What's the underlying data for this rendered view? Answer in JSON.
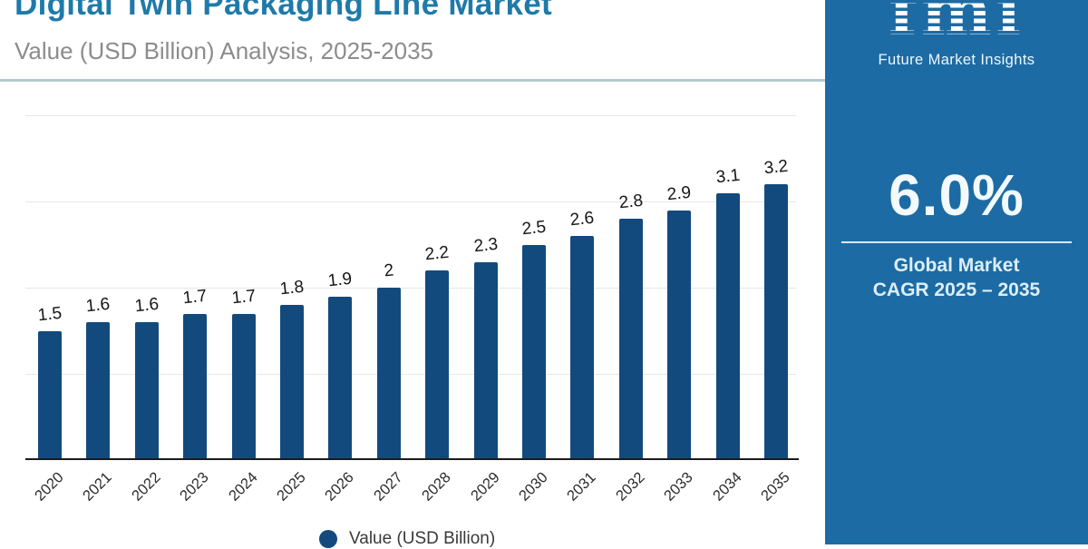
{
  "header": {
    "title": "Digital Twin Packaging Line Market",
    "subtitle": "Value (USD Billion) Analysis, 2025-2035"
  },
  "chart_data": {
    "type": "bar",
    "title": "Digital Twin Packaging Line Market",
    "subtitle": "Value (USD Billion) Analysis, 2025-2035",
    "categories": [
      "2020",
      "2021",
      "2022",
      "2023",
      "2024",
      "2025",
      "2026",
      "2027",
      "2028",
      "2029",
      "2030",
      "2031",
      "2032",
      "2033",
      "2034",
      "2035"
    ],
    "values": [
      1.5,
      1.6,
      1.6,
      1.7,
      1.7,
      1.8,
      1.9,
      2,
      2.2,
      2.3,
      2.5,
      2.6,
      2.8,
      2.9,
      3.1,
      3.2
    ],
    "data_labels": [
      "1.5",
      "1.6",
      "1.6",
      "1.7",
      "1.7",
      "1.8",
      "1.9",
      "2",
      "2.2",
      "2.3",
      "2.5",
      "2.6",
      "2.8",
      "2.9",
      "3.1",
      "3.2"
    ],
    "series_label": "Value (USD Billion)",
    "xlabel": "",
    "ylabel": "",
    "ylim": [
      0,
      4
    ],
    "gridline_values": [
      1,
      2,
      3,
      4
    ],
    "grid": "horizontal-only",
    "legend_position": "bottom",
    "bar_color": "#134a7e"
  },
  "legend": {
    "marker_color": "#134a7e",
    "label": "Value (USD Billion)"
  },
  "sidebar": {
    "panel_color": "#1d6ba4",
    "logo_text": "fmi",
    "logo_caption": "Future Market Insights",
    "cagr_value": "6.0%",
    "cagr_label_line1": "Global Market",
    "cagr_label_line2": "CAGR 2025 – 2035"
  },
  "colors": {
    "title": "#1f7aa9",
    "subtitle": "#8c8c8c",
    "axis": "#1b1b1b",
    "gridline": "#e5e7e8"
  }
}
